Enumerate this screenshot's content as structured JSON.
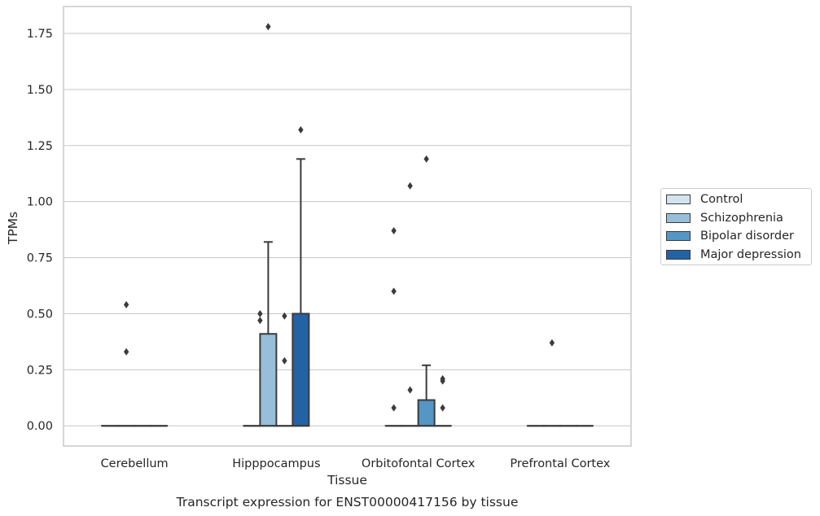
{
  "chart_data": {
    "type": "boxplot",
    "title": "Transcript expression for ENST00000417156 by tissue",
    "xlabel": "Tissue",
    "ylabel": "TPMs",
    "ylim": [
      -0.09,
      1.87
    ],
    "yticks": [
      "0.00",
      "0.25",
      "0.50",
      "0.75",
      "1.00",
      "1.25",
      "1.50",
      "1.75"
    ],
    "grid": true,
    "legend_position": "right",
    "categories": [
      "Cerebellum",
      "Hipppocampus",
      "Orbitofontal Cortex",
      "Prefrontal Cortex"
    ],
    "series": [
      {
        "name": "Control",
        "color": "#d3e3ef",
        "boxes": [
          {
            "q1": 0,
            "median": 0,
            "q3": 0,
            "whisker_low": 0,
            "whisker_high": 0,
            "outliers": []
          },
          {
            "q1": 0,
            "median": 0,
            "q3": 0,
            "whisker_low": 0,
            "whisker_high": 0,
            "outliers": []
          },
          {
            "q1": 0,
            "median": 0,
            "q3": 0,
            "whisker_low": 0,
            "whisker_high": 0,
            "outliers": [
              0.87,
              0.6,
              0.08
            ]
          },
          {
            "q1": 0,
            "median": 0,
            "q3": 0,
            "whisker_low": 0,
            "whisker_high": 0,
            "outliers": []
          }
        ]
      },
      {
        "name": "Schizophrenia",
        "color": "#98bfd9",
        "boxes": [
          {
            "q1": 0,
            "median": 0,
            "q3": 0,
            "whisker_low": 0,
            "whisker_high": 0,
            "outliers": [
              0.54,
              0.33
            ]
          },
          {
            "q1": 0,
            "median": 0,
            "q3": 0.41,
            "whisker_low": 0,
            "whisker_high": 0.82,
            "outliers": [
              1.78
            ]
          },
          {
            "q1": 0,
            "median": 0,
            "q3": 0,
            "whisker_low": 0,
            "whisker_high": 0,
            "outliers": [
              1.07,
              0.16
            ]
          },
          {
            "q1": 0,
            "median": 0,
            "q3": 0,
            "whisker_low": 0,
            "whisker_high": 0,
            "outliers": [
              0.37
            ]
          }
        ]
      },
      {
        "name": "Bipolar disorder",
        "color": "#5496c4",
        "boxes": [
          {
            "q1": 0,
            "median": 0,
            "q3": 0,
            "whisker_low": 0,
            "whisker_high": 0,
            "outliers": []
          },
          {
            "q1": 0,
            "median": 0,
            "q3": 0,
            "whisker_low": 0,
            "whisker_high": 0,
            "outliers": [
              0.49,
              0.29
            ]
          },
          {
            "q1": 0,
            "median": 0,
            "q3": 0.115,
            "whisker_low": 0,
            "whisker_high": 0.27,
            "outliers": [
              1.19
            ]
          },
          {
            "q1": 0,
            "median": 0,
            "q3": 0,
            "whisker_low": 0,
            "whisker_high": 0,
            "outliers": []
          }
        ]
      },
      {
        "name": "Major depression",
        "color": "#2462a6",
        "boxes": [
          {
            "q1": 0,
            "median": 0,
            "q3": 0,
            "whisker_low": 0,
            "whisker_high": 0,
            "outliers": []
          },
          {
            "q1": 0,
            "median": 0,
            "q3": 0.5,
            "whisker_low": 0,
            "whisker_high": 1.19,
            "outliers": [
              1.32
            ]
          },
          {
            "q1": 0,
            "median": 0,
            "q3": 0,
            "whisker_low": 0,
            "whisker_high": 0,
            "outliers": [
              0.21,
              0.2,
              0.08
            ]
          },
          {
            "q1": 0,
            "median": 0,
            "q3": 0,
            "whisker_low": 0,
            "whisker_high": 0,
            "outliers": []
          }
        ]
      }
    ],
    "extra_outliers": [
      {
        "category_index": 1,
        "series_index": 0,
        "values": [
          0.5,
          0.47
        ]
      }
    ]
  }
}
